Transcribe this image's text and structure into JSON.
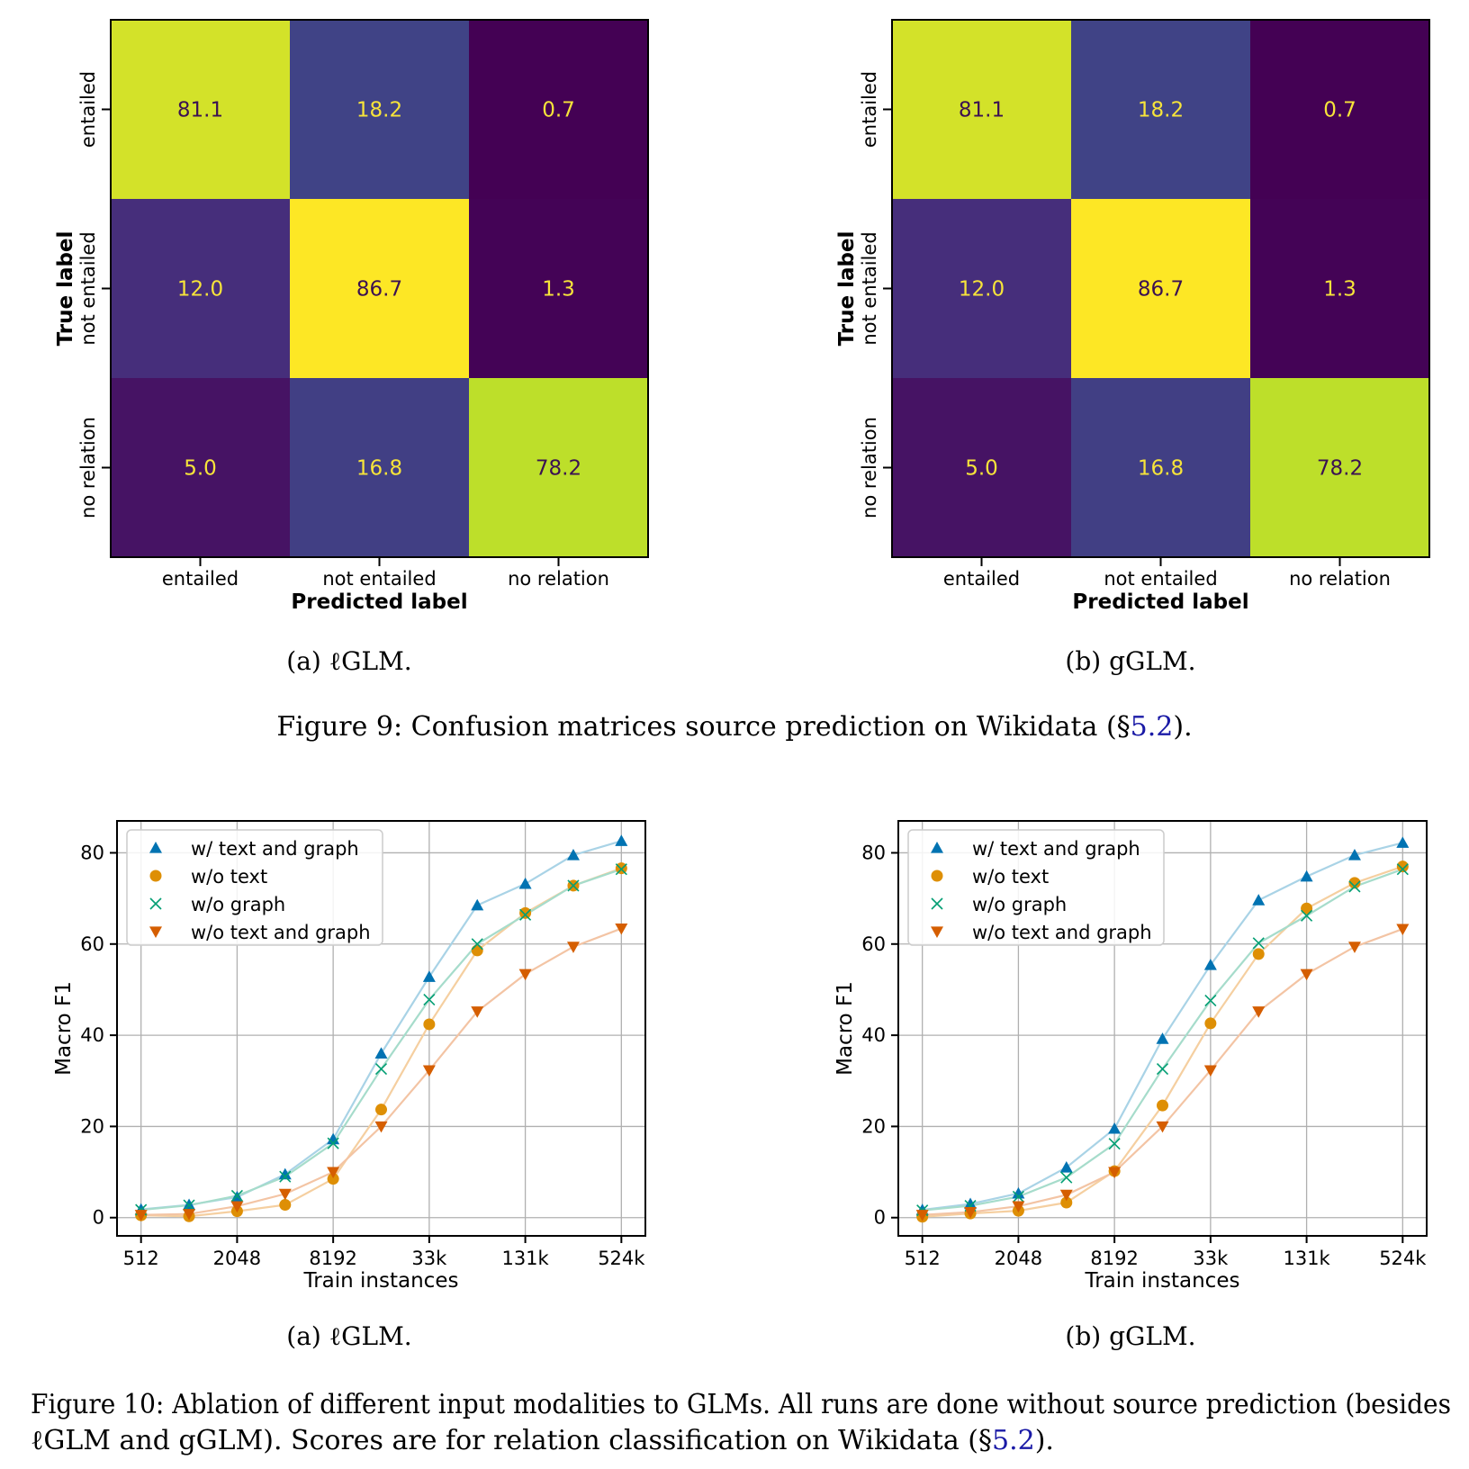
{
  "figure9": {
    "subcaption_a": "(a) ℓGLM.",
    "subcaption_b": "(b) gGLM.",
    "caption_prefix": "Figure 9: Confusion matrices source prediction on Wikidata (§",
    "caption_ref": "5.2",
    "caption_suffix": ")."
  },
  "figure10": {
    "subcaption_a": "(a) ℓGLM.",
    "subcaption_b": "(b) gGLM.",
    "caption_line1": "Figure 10: Ablation of different input modalities to GLMs. All runs are done without source prediction (besides",
    "caption_line2_prefix": "ℓGLM and gGLM). Scores are for relation classification on Wikidata (§",
    "caption_ref": "5.2",
    "caption_line2_suffix": ")."
  },
  "colors": {
    "viridis": [
      "#440154",
      "#482878",
      "#3e4989",
      "#31688e",
      "#26828e",
      "#1f9e89",
      "#35b779",
      "#6ece58",
      "#b5de2b",
      "#fde725"
    ],
    "series": [
      "#0173b2",
      "#de8f05",
      "#029e73",
      "#d55e00"
    ],
    "series_lines": [
      "#a9d3e6",
      "#f5cfa0",
      "#a6dccb",
      "#f3c4a4"
    ]
  },
  "chart_data": [
    {
      "type": "heatmap",
      "title": "",
      "xlabel": "Predicted label",
      "ylabel": "True label",
      "categories": [
        "entailed",
        "not entailed",
        "no relation"
      ],
      "values": [
        [
          81.1,
          18.2,
          0.7
        ],
        [
          12.0,
          86.7,
          1.3
        ],
        [
          5.0,
          16.8,
          78.2
        ]
      ],
      "cell_labels": [
        [
          "81.1",
          "18.2",
          "0.7"
        ],
        [
          "12.0",
          "86.7",
          "1.3"
        ],
        [
          "5.0",
          "16.8",
          "78.2"
        ]
      ],
      "colormap": "viridis"
    },
    {
      "type": "heatmap",
      "title": "",
      "xlabel": "Predicted label",
      "ylabel": "True label",
      "categories": [
        "entailed",
        "not entailed",
        "no relation"
      ],
      "values": [
        [
          81.1,
          18.2,
          0.7
        ],
        [
          12.0,
          86.7,
          1.3
        ],
        [
          5.0,
          16.8,
          78.2
        ]
      ],
      "cell_labels": [
        [
          "81.1",
          "18.2",
          "0.7"
        ],
        [
          "12.0",
          "86.7",
          "1.3"
        ],
        [
          "5.0",
          "16.8",
          "78.2"
        ]
      ],
      "colormap": "viridis"
    },
    {
      "type": "line",
      "title": "",
      "xlabel": "Train instances",
      "ylabel": "Macro F1",
      "x": [
        512,
        1024,
        2048,
        4096,
        8192,
        16384,
        32768,
        65536,
        131072,
        262144,
        524288
      ],
      "xscale": "log2",
      "xticks": [
        512,
        2048,
        8192,
        32768,
        131072,
        524288
      ],
      "xticklabels": [
        "512",
        "2048",
        "8192",
        "33k",
        "131k",
        "524k"
      ],
      "yticks": [
        0,
        20,
        40,
        60,
        80
      ],
      "ylim": [
        -4,
        87
      ],
      "grid": true,
      "legend": "top-left",
      "series": [
        {
          "name": "w/ text and graph",
          "marker": "triangle-up",
          "values": [
            1.8,
            2.8,
            4.5,
            9.5,
            17.2,
            36.0,
            52.8,
            68.5,
            73.2,
            79.5,
            82.6
          ]
        },
        {
          "name": "w/o text",
          "marker": "circle",
          "values": [
            0.5,
            0.3,
            1.4,
            2.8,
            8.5,
            23.7,
            42.4,
            58.6,
            66.8,
            72.8,
            76.6
          ]
        },
        {
          "name": "w/o graph",
          "marker": "x",
          "values": [
            1.7,
            2.7,
            4.8,
            9.0,
            16.3,
            32.6,
            47.8,
            60.0,
            66.4,
            72.8,
            76.4
          ]
        },
        {
          "name": "w/o text and graph",
          "marker": "triangle-down",
          "values": [
            0.6,
            0.8,
            2.5,
            5.2,
            10.0,
            20.0,
            32.3,
            45.2,
            53.4,
            59.4,
            63.4
          ]
        }
      ]
    },
    {
      "type": "line",
      "title": "",
      "xlabel": "Train instances",
      "ylabel": "Macro F1",
      "x": [
        512,
        1024,
        2048,
        4096,
        8192,
        16384,
        32768,
        65536,
        131072,
        262144,
        524288
      ],
      "xscale": "log2",
      "xticks": [
        512,
        2048,
        8192,
        32768,
        131072,
        524288
      ],
      "xticklabels": [
        "512",
        "2048",
        "8192",
        "33k",
        "131k",
        "524k"
      ],
      "yticks": [
        0,
        20,
        40,
        60,
        80
      ],
      "ylim": [
        -4,
        87
      ],
      "grid": true,
      "legend": "top-left",
      "series": [
        {
          "name": "w/ text and graph",
          "marker": "triangle-up",
          "values": [
            1.7,
            3.0,
            5.3,
            11.0,
            19.5,
            39.2,
            55.4,
            69.6,
            74.8,
            79.5,
            82.2
          ]
        },
        {
          "name": "w/o text",
          "marker": "circle",
          "values": [
            0.2,
            0.9,
            1.5,
            3.3,
            10.2,
            24.6,
            42.6,
            57.8,
            67.8,
            73.4,
            77.0
          ]
        },
        {
          "name": "w/o graph",
          "marker": "x",
          "values": [
            1.6,
            2.6,
            4.6,
            8.8,
            16.2,
            32.6,
            47.6,
            60.2,
            66.2,
            72.6,
            76.4
          ]
        },
        {
          "name": "w/o text and graph",
          "marker": "triangle-down",
          "values": [
            0.6,
            1.2,
            2.5,
            5.0,
            10.0,
            20.0,
            32.3,
            45.2,
            53.4,
            59.4,
            63.3
          ]
        }
      ]
    }
  ]
}
